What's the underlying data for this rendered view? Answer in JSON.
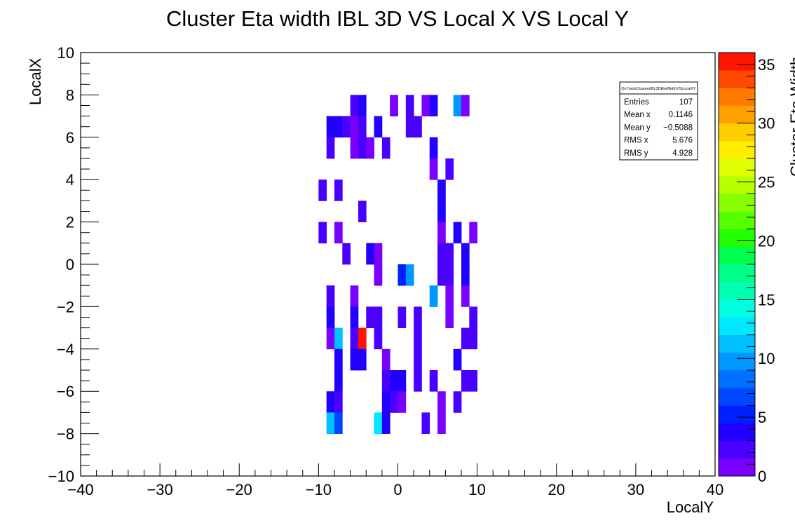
{
  "chart_data": {
    "type": "heatmap",
    "title": "Cluster Eta width IBL 3D VS Local X VS Local Y",
    "xlabel": "LocalY",
    "ylabel": "LocalX",
    "zlabel": "Cluster Eta Width",
    "xlim": [
      -40,
      40
    ],
    "ylim": [
      -10,
      10
    ],
    "zlim": [
      0,
      36
    ],
    "x_ticks": [
      "−40",
      "−30",
      "−20",
      "−10",
      "0",
      "10",
      "20",
      "30",
      "40"
    ],
    "y_ticks": [
      "−10",
      "−8",
      "−6",
      "−4",
      "−2",
      "0",
      "2",
      "4",
      "6",
      "8",
      "10"
    ],
    "z_ticks": [
      "0",
      "5",
      "10",
      "15",
      "20",
      "25",
      "30",
      "35"
    ],
    "bin_width_x": 1,
    "bin_width_y": 1,
    "cells": [
      {
        "x": -6,
        "y": 7.5,
        "z": 2
      },
      {
        "x": -5,
        "y": 7.5,
        "z": 3
      },
      {
        "x": -1,
        "y": 7.5,
        "z": 1
      },
      {
        "x": 1,
        "y": 7.5,
        "z": 2
      },
      {
        "x": 3,
        "y": 7.5,
        "z": 1
      },
      {
        "x": 4,
        "y": 7.5,
        "z": 4
      },
      {
        "x": 7,
        "y": 7.5,
        "z": 9
      },
      {
        "x": 8,
        "y": 7.5,
        "z": 1
      },
      {
        "x": -9,
        "y": 6.5,
        "z": 4
      },
      {
        "x": -8,
        "y": 6.5,
        "z": 3
      },
      {
        "x": -7,
        "y": 6.5,
        "z": 2
      },
      {
        "x": -6,
        "y": 6.5,
        "z": 1
      },
      {
        "x": -5,
        "y": 6.5,
        "z": 2
      },
      {
        "x": -3,
        "y": 6.5,
        "z": 4
      },
      {
        "x": 1,
        "y": 6.5,
        "z": 2
      },
      {
        "x": 2,
        "y": 6.5,
        "z": 2
      },
      {
        "x": -9,
        "y": 5.5,
        "z": 2
      },
      {
        "x": -6,
        "y": 5.5,
        "z": 1
      },
      {
        "x": -5,
        "y": 5.5,
        "z": 2
      },
      {
        "x": -4,
        "y": 5.5,
        "z": 1
      },
      {
        "x": -2,
        "y": 5.5,
        "z": 2
      },
      {
        "x": 4,
        "y": 5.5,
        "z": 4
      },
      {
        "x": 4,
        "y": 4.5,
        "z": 1
      },
      {
        "x": 6,
        "y": 4.5,
        "z": 2
      },
      {
        "x": -10,
        "y": 3.5,
        "z": 2
      },
      {
        "x": -8,
        "y": 3.5,
        "z": 2
      },
      {
        "x": 5,
        "y": 3.5,
        "z": 4
      },
      {
        "x": 5,
        "y": 2.5,
        "z": 3
      },
      {
        "x": -5,
        "y": 2.5,
        "z": 2
      },
      {
        "x": -10,
        "y": 1.5,
        "z": 2
      },
      {
        "x": -8,
        "y": 1.5,
        "z": 1
      },
      {
        "x": 5,
        "y": 1.5,
        "z": 1
      },
      {
        "x": 7,
        "y": 1.5,
        "z": 4
      },
      {
        "x": 9,
        "y": 1.5,
        "z": 1
      },
      {
        "x": -7,
        "y": 0.5,
        "z": 2
      },
      {
        "x": -4,
        "y": 0.5,
        "z": 3
      },
      {
        "x": -3,
        "y": 0.5,
        "z": 1
      },
      {
        "x": 5,
        "y": 0.5,
        "z": 2
      },
      {
        "x": 6,
        "y": 0.5,
        "z": 2
      },
      {
        "x": 8,
        "y": 0.5,
        "z": 3
      },
      {
        "x": -3,
        "y": -0.5,
        "z": 1
      },
      {
        "x": 0,
        "y": -0.5,
        "z": 5
      },
      {
        "x": 1,
        "y": -0.5,
        "z": 9
      },
      {
        "x": 5,
        "y": -0.5,
        "z": 2
      },
      {
        "x": 6,
        "y": -0.5,
        "z": 2
      },
      {
        "x": 8,
        "y": -0.5,
        "z": 4
      },
      {
        "x": -9,
        "y": -1.5,
        "z": 2
      },
      {
        "x": -6,
        "y": -1.5,
        "z": 1
      },
      {
        "x": 4,
        "y": -1.5,
        "z": 9
      },
      {
        "x": 6,
        "y": -1.5,
        "z": 1
      },
      {
        "x": 8,
        "y": -1.5,
        "z": 1
      },
      {
        "x": -9,
        "y": -2.5,
        "z": 4
      },
      {
        "x": -6,
        "y": -2.5,
        "z": 4
      },
      {
        "x": -4,
        "y": -2.5,
        "z": 2
      },
      {
        "x": -3,
        "y": -2.5,
        "z": 2
      },
      {
        "x": 0,
        "y": -2.5,
        "z": 2
      },
      {
        "x": 2,
        "y": -2.5,
        "z": 2
      },
      {
        "x": 6,
        "y": -2.5,
        "z": 1
      },
      {
        "x": 9,
        "y": -2.5,
        "z": 2
      },
      {
        "x": -9,
        "y": -3.5,
        "z": 1
      },
      {
        "x": -8,
        "y": -3.5,
        "z": 11
      },
      {
        "x": -6,
        "y": -3.5,
        "z": 2
      },
      {
        "x": -5,
        "y": -3.5,
        "z": 36
      },
      {
        "x": -3,
        "y": -3.5,
        "z": 2
      },
      {
        "x": 2,
        "y": -3.5,
        "z": 2
      },
      {
        "x": 8,
        "y": -3.5,
        "z": 2
      },
      {
        "x": 9,
        "y": -3.5,
        "z": 2
      },
      {
        "x": -8,
        "y": -4.5,
        "z": 4
      },
      {
        "x": -6,
        "y": -4.5,
        "z": 3
      },
      {
        "x": -5,
        "y": -4.5,
        "z": 3
      },
      {
        "x": -2,
        "y": -4.5,
        "z": 1
      },
      {
        "x": 2,
        "y": -4.5,
        "z": 2
      },
      {
        "x": 7,
        "y": -4.5,
        "z": 4
      },
      {
        "x": -8,
        "y": -5.5,
        "z": 4
      },
      {
        "x": -2,
        "y": -5.5,
        "z": 2
      },
      {
        "x": -1,
        "y": -5.5,
        "z": 3
      },
      {
        "x": 0,
        "y": -5.5,
        "z": 4
      },
      {
        "x": 2,
        "y": -5.5,
        "z": 2
      },
      {
        "x": 4,
        "y": -5.5,
        "z": 2
      },
      {
        "x": 8,
        "y": -5.5,
        "z": 2
      },
      {
        "x": 9,
        "y": -5.5,
        "z": 2
      },
      {
        "x": -9,
        "y": -6.5,
        "z": 4
      },
      {
        "x": -8,
        "y": -6.5,
        "z": 2
      },
      {
        "x": -2,
        "y": -6.5,
        "z": 3
      },
      {
        "x": -1,
        "y": -6.5,
        "z": 2
      },
      {
        "x": 0,
        "y": -6.5,
        "z": 1
      },
      {
        "x": 5,
        "y": -6.5,
        "z": 1
      },
      {
        "x": 7,
        "y": -6.5,
        "z": 2
      },
      {
        "x": -9,
        "y": -7.5,
        "z": 11
      },
      {
        "x": -8,
        "y": -7.5,
        "z": 7
      },
      {
        "x": -3,
        "y": -7.5,
        "z": 12
      },
      {
        "x": -2,
        "y": -7.5,
        "z": 3
      },
      {
        "x": 3,
        "y": -7.5,
        "z": 2
      },
      {
        "x": 5,
        "y": -7.5,
        "z": 1
      }
    ],
    "palette": [
      "#7a00ff",
      "#4a00ff",
      "#2200ff",
      "#0020ff",
      "#0048ff",
      "#0070ff",
      "#0098ff",
      "#00c0ff",
      "#00e8ff",
      "#00ffe0",
      "#00ffb0",
      "#00ff88",
      "#00ff50",
      "#22ff00",
      "#55ff00",
      "#88ff00",
      "#b8ff00",
      "#e0ff00",
      "#ffee00",
      "#ffcc00",
      "#ffa000",
      "#ff7a00",
      "#ff4800",
      "#ff1400"
    ],
    "stats": {
      "name": "OnTrackClustersIBL3DEtaWidthVSLocalXY",
      "rows": [
        {
          "label": "Entries",
          "value": "107"
        },
        {
          "label": "Mean x",
          "value": "0.1146"
        },
        {
          "label": "Mean y",
          "value": "−0.5088"
        },
        {
          "label": "RMS x",
          "value": "5.676"
        },
        {
          "label": "RMS y",
          "value": "4.928"
        }
      ]
    }
  }
}
